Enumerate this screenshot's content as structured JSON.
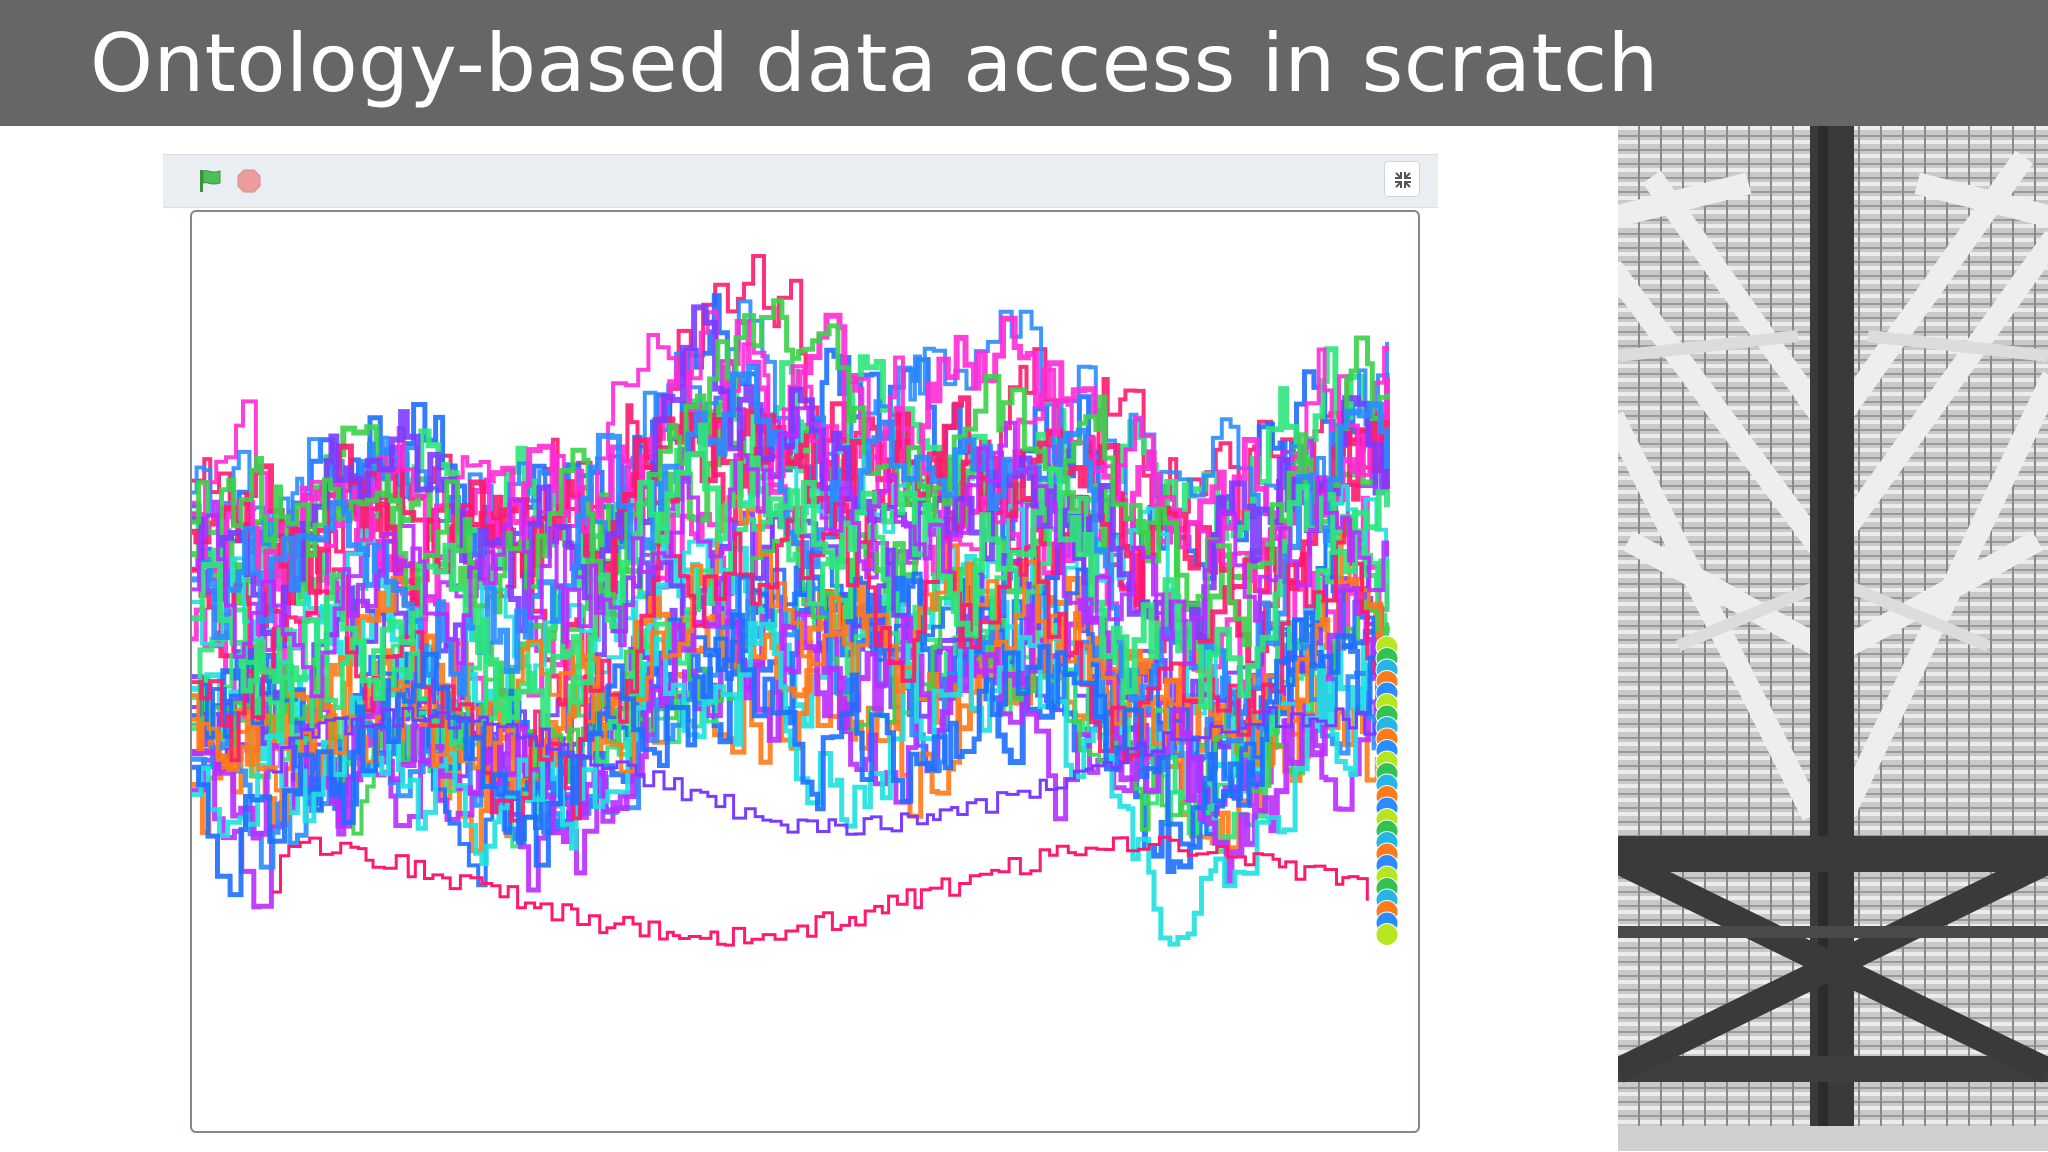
{
  "slide": {
    "title": "Ontology-based data access in scratch"
  },
  "toolbar": {
    "icons": [
      "green-flag-icon",
      "stop-icon",
      "fullscreen-exit-icon"
    ],
    "flag_color": "#4cbf56",
    "stop_color": "#ec9c9c"
  },
  "stage": {
    "series_colors": [
      "#ff1a6e",
      "#1f6fff",
      "#2ee67a",
      "#b92dff",
      "#ff2bd6",
      "#20e0e0",
      "#7a3cff",
      "#ff7a1a",
      "#3bd14a",
      "#2a8cff"
    ],
    "sprite_colors": [
      "#b6e61d",
      "#32c24f",
      "#25b6e6",
      "#ff7a1a",
      "#2a8cff"
    ]
  },
  "photo": {
    "description_icon": "truss-structure-photo"
  }
}
